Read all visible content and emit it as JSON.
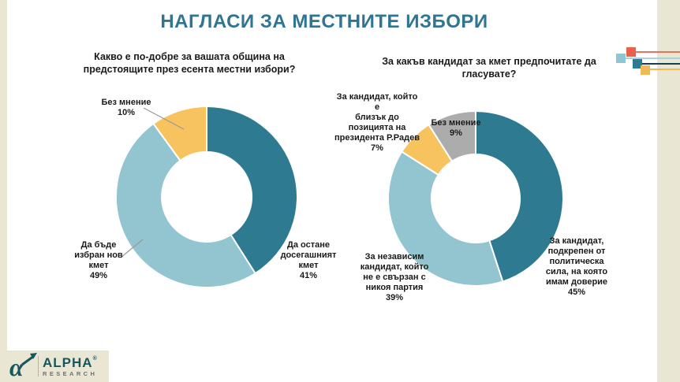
{
  "page": {
    "title": "НАГЛАСИ ЗА МЕСТНИТЕ ИЗБОРИ"
  },
  "theme": {
    "accent_teal_dark": "#2e7b91",
    "accent_blue_light": "#92c5cf",
    "accent_yellow": "#f6c35e",
    "accent_gray": "#acacac",
    "title_color": "#2f7592",
    "edge_strip_beige": "#e9e6d3",
    "decor_red": "#e8604c",
    "decor_navy": "#1c3c4e"
  },
  "chart_data": [
    {
      "type": "pie",
      "style": "donut",
      "title": "Какво е по-добре за вашата община на предстоящите през есента местни избори?",
      "unit": "%",
      "start": "12 o'clock",
      "direction": "clockwise",
      "slices": [
        {
          "label": "Да остане досегашният кмет",
          "value": 41,
          "color": "#2e7b91"
        },
        {
          "label": "Да бъде избран нов кмет",
          "value": 49,
          "color": "#92c5cf"
        },
        {
          "label": "Без мнение",
          "value": 10,
          "color": "#f6c35e"
        }
      ],
      "callouts": [
        "Без мнение\n10%",
        "Да бъде\nизбран нов\nкмет\n49%",
        "Да остане\nдосегашният\nкмет\n41%"
      ]
    },
    {
      "type": "pie",
      "style": "donut",
      "title": "За какъв кандидат за кмет предпочитате да гласувате?",
      "unit": "%",
      "start": "12 o'clock",
      "direction": "clockwise",
      "slices": [
        {
          "label": "За кандидат, подкрепен от политическа сила, на която имам доверие",
          "value": 45,
          "color": "#2e7b91"
        },
        {
          "label": "За независим кандидат, който не е свързан с никоя партия",
          "value": 39,
          "color": "#92c5cf"
        },
        {
          "label": "За кандидат, който е близък до позицията на президента Р.Радев",
          "value": 7,
          "color": "#f6c35e"
        },
        {
          "label": "Без мнение",
          "value": 9,
          "color": "#acacac"
        }
      ],
      "callouts": [
        "За кандидат, който е\nблизък до\nпозицията на\nпрезидента Р.Радев\n7%",
        "Без мнение\n9%",
        "За независим\nкандидат, който\nне е свързан с\nникоя партия\n39%",
        "За кандидат,\nподкрепен от\nполитическа\nсила, на която\nимам доверие\n45%"
      ]
    }
  ],
  "logo": {
    "brand": "ALPHA",
    "reg_mark": "®",
    "subtitle": "RESEARCH",
    "glyph": "α"
  }
}
